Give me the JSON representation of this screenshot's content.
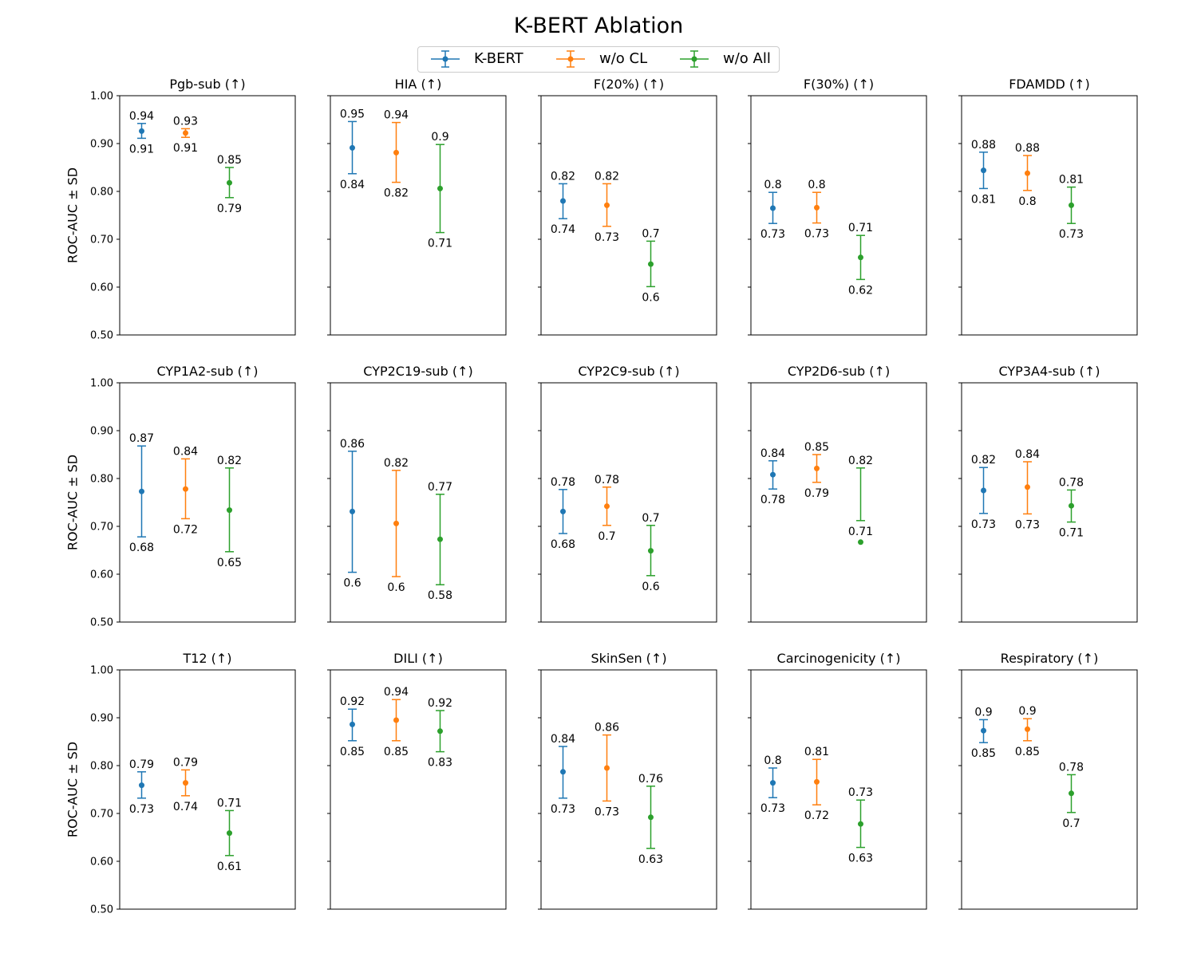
{
  "figure": {
    "title": "K-BERT Ablation"
  },
  "legend": [
    {
      "name": "K-BERT",
      "color": "#1f77b4"
    },
    {
      "name": "w/o CL",
      "color": "#ff7f0e"
    },
    {
      "name": "w/o All",
      "color": "#2ca02c"
    }
  ],
  "chart_data": [
    {
      "type": "scatter",
      "title": "Pgb-sub (↑)",
      "ylabel": "ROC-AUC ± SD",
      "ylim": [
        0.5,
        1.0
      ],
      "yticks": [
        "0.50",
        "0.60",
        "0.70",
        "0.80",
        "0.90",
        "1.00"
      ],
      "series": [
        {
          "name": "K-BERT",
          "mean": 0.926,
          "upper": 0.942,
          "lower": 0.911,
          "upper_label": "0.94",
          "lower_label": "0.91"
        },
        {
          "name": "w/o CL",
          "mean": 0.922,
          "upper": 0.931,
          "lower": 0.913,
          "upper_label": "0.93",
          "lower_label": "0.91"
        },
        {
          "name": "w/o All",
          "mean": 0.818,
          "upper": 0.85,
          "lower": 0.787,
          "upper_label": "0.85",
          "lower_label": "0.79"
        }
      ]
    },
    {
      "type": "scatter",
      "title": "HIA (↑)",
      "ylabel": "",
      "ylim": [
        0.5,
        1.0
      ],
      "yticks": [],
      "series": [
        {
          "name": "K-BERT",
          "mean": 0.891,
          "upper": 0.946,
          "lower": 0.837,
          "upper_label": "0.95",
          "lower_label": "0.84"
        },
        {
          "name": "w/o CL",
          "mean": 0.881,
          "upper": 0.944,
          "lower": 0.819,
          "upper_label": "0.94",
          "lower_label": "0.82"
        },
        {
          "name": "w/o All",
          "mean": 0.806,
          "upper": 0.898,
          "lower": 0.714,
          "upper_label": "0.9",
          "lower_label": "0.71"
        }
      ]
    },
    {
      "type": "scatter",
      "title": "F(20%) (↑)",
      "ylabel": "",
      "ylim": [
        0.5,
        1.0
      ],
      "yticks": [],
      "series": [
        {
          "name": "K-BERT",
          "mean": 0.78,
          "upper": 0.816,
          "lower": 0.743,
          "upper_label": "0.82",
          "lower_label": "0.74"
        },
        {
          "name": "w/o CL",
          "mean": 0.771,
          "upper": 0.816,
          "lower": 0.727,
          "upper_label": "0.82",
          "lower_label": "0.73"
        },
        {
          "name": "w/o All",
          "mean": 0.648,
          "upper": 0.696,
          "lower": 0.601,
          "upper_label": "0.7",
          "lower_label": "0.6"
        }
      ]
    },
    {
      "type": "scatter",
      "title": "F(30%) (↑)",
      "ylabel": "",
      "ylim": [
        0.5,
        1.0
      ],
      "yticks": [],
      "series": [
        {
          "name": "K-BERT",
          "mean": 0.765,
          "upper": 0.798,
          "lower": 0.733,
          "upper_label": "0.8",
          "lower_label": "0.73"
        },
        {
          "name": "w/o CL",
          "mean": 0.766,
          "upper": 0.798,
          "lower": 0.734,
          "upper_label": "0.8",
          "lower_label": "0.73"
        },
        {
          "name": "w/o All",
          "mean": 0.662,
          "upper": 0.708,
          "lower": 0.616,
          "upper_label": "0.71",
          "lower_label": "0.62"
        }
      ]
    },
    {
      "type": "scatter",
      "title": "FDAMDD (↑)",
      "ylabel": "",
      "ylim": [
        0.5,
        1.0
      ],
      "yticks": [],
      "series": [
        {
          "name": "K-BERT",
          "mean": 0.844,
          "upper": 0.882,
          "lower": 0.806,
          "upper_label": "0.88",
          "lower_label": "0.81"
        },
        {
          "name": "w/o CL",
          "mean": 0.838,
          "upper": 0.875,
          "lower": 0.802,
          "upper_label": "0.88",
          "lower_label": "0.8"
        },
        {
          "name": "w/o All",
          "mean": 0.771,
          "upper": 0.809,
          "lower": 0.733,
          "upper_label": "0.81",
          "lower_label": "0.73"
        }
      ]
    },
    {
      "type": "scatter",
      "title": "CYP1A2-sub (↑)",
      "ylabel": "ROC-AUC ± SD",
      "ylim": [
        0.5,
        1.0
      ],
      "yticks": [
        "0.50",
        "0.60",
        "0.70",
        "0.80",
        "0.90",
        "1.00"
      ],
      "series": [
        {
          "name": "K-BERT",
          "mean": 0.773,
          "upper": 0.868,
          "lower": 0.678,
          "upper_label": "0.87",
          "lower_label": "0.68"
        },
        {
          "name": "w/o CL",
          "mean": 0.778,
          "upper": 0.841,
          "lower": 0.716,
          "upper_label": "0.84",
          "lower_label": "0.72"
        },
        {
          "name": "w/o All",
          "mean": 0.734,
          "upper": 0.822,
          "lower": 0.647,
          "upper_label": "0.82",
          "lower_label": "0.65"
        }
      ]
    },
    {
      "type": "scatter",
      "title": "CYP2C19-sub (↑)",
      "ylabel": "",
      "ylim": [
        0.5,
        1.0
      ],
      "yticks": [],
      "series": [
        {
          "name": "K-BERT",
          "mean": 0.731,
          "upper": 0.857,
          "lower": 0.604,
          "upper_label": "0.86",
          "lower_label": "0.6"
        },
        {
          "name": "w/o CL",
          "mean": 0.706,
          "upper": 0.817,
          "lower": 0.595,
          "upper_label": "0.82",
          "lower_label": "0.6"
        },
        {
          "name": "w/o All",
          "mean": 0.673,
          "upper": 0.767,
          "lower": 0.578,
          "upper_label": "0.77",
          "lower_label": "0.58"
        }
      ]
    },
    {
      "type": "scatter",
      "title": "CYP2C9-sub (↑)",
      "ylabel": "",
      "ylim": [
        0.5,
        1.0
      ],
      "yticks": [],
      "series": [
        {
          "name": "K-BERT",
          "mean": 0.731,
          "upper": 0.777,
          "lower": 0.685,
          "upper_label": "0.78",
          "lower_label": "0.68"
        },
        {
          "name": "w/o CL",
          "mean": 0.742,
          "upper": 0.782,
          "lower": 0.702,
          "upper_label": "0.78",
          "lower_label": "0.7"
        },
        {
          "name": "w/o All",
          "mean": 0.649,
          "upper": 0.702,
          "lower": 0.597,
          "upper_label": "0.7",
          "lower_label": "0.6"
        }
      ]
    },
    {
      "type": "scatter",
      "title": "CYP2D6-sub (↑)",
      "ylabel": "",
      "ylim": [
        0.5,
        1.0
      ],
      "yticks": [],
      "series": [
        {
          "name": "K-BERT",
          "mean": 0.808,
          "upper": 0.837,
          "lower": 0.778,
          "upper_label": "0.84",
          "lower_label": "0.78"
        },
        {
          "name": "w/o CL",
          "mean": 0.821,
          "upper": 0.85,
          "lower": 0.792,
          "upper_label": "0.85",
          "lower_label": "0.79"
        },
        {
          "name": "w/o All",
          "mean": 0.667,
          "upper": 0.822,
          "lower": 0.712,
          "upper_label": "0.82",
          "lower_label": "0.71"
        }
      ]
    },
    {
      "type": "scatter",
      "title": "CYP3A4-sub (↑)",
      "ylabel": "",
      "ylim": [
        0.5,
        1.0
      ],
      "yticks": [],
      "series": [
        {
          "name": "K-BERT",
          "mean": 0.775,
          "upper": 0.823,
          "lower": 0.727,
          "upper_label": "0.82",
          "lower_label": "0.73"
        },
        {
          "name": "w/o CL",
          "mean": 0.782,
          "upper": 0.835,
          "lower": 0.726,
          "upper_label": "0.84",
          "lower_label": "0.73"
        },
        {
          "name": "w/o All",
          "mean": 0.743,
          "upper": 0.776,
          "lower": 0.709,
          "upper_label": "0.78",
          "lower_label": "0.71"
        }
      ]
    },
    {
      "type": "scatter",
      "title": "T12 (↑)",
      "ylabel": "ROC-AUC ± SD",
      "ylim": [
        0.5,
        1.0
      ],
      "yticks": [
        "0.50",
        "0.60",
        "0.70",
        "0.80",
        "0.90",
        "1.00"
      ],
      "series": [
        {
          "name": "K-BERT",
          "mean": 0.759,
          "upper": 0.787,
          "lower": 0.732,
          "upper_label": "0.79",
          "lower_label": "0.73"
        },
        {
          "name": "w/o CL",
          "mean": 0.764,
          "upper": 0.791,
          "lower": 0.737,
          "upper_label": "0.79",
          "lower_label": "0.74"
        },
        {
          "name": "w/o All",
          "mean": 0.659,
          "upper": 0.706,
          "lower": 0.612,
          "upper_label": "0.71",
          "lower_label": "0.61"
        }
      ]
    },
    {
      "type": "scatter",
      "title": "DILI (↑)",
      "ylabel": "",
      "ylim": [
        0.5,
        1.0
      ],
      "yticks": [],
      "series": [
        {
          "name": "K-BERT",
          "mean": 0.886,
          "upper": 0.918,
          "lower": 0.852,
          "upper_label": "0.92",
          "lower_label": "0.85"
        },
        {
          "name": "w/o CL",
          "mean": 0.895,
          "upper": 0.938,
          "lower": 0.852,
          "upper_label": "0.94",
          "lower_label": "0.85"
        },
        {
          "name": "w/o All",
          "mean": 0.872,
          "upper": 0.915,
          "lower": 0.829,
          "upper_label": "0.92",
          "lower_label": "0.83"
        }
      ]
    },
    {
      "type": "scatter",
      "title": "SkinSen (↑)",
      "ylabel": "",
      "ylim": [
        0.5,
        1.0
      ],
      "yticks": [],
      "series": [
        {
          "name": "K-BERT",
          "mean": 0.787,
          "upper": 0.84,
          "lower": 0.732,
          "upper_label": "0.84",
          "lower_label": "0.73"
        },
        {
          "name": "w/o CL",
          "mean": 0.795,
          "upper": 0.864,
          "lower": 0.726,
          "upper_label": "0.86",
          "lower_label": "0.73"
        },
        {
          "name": "w/o All",
          "mean": 0.692,
          "upper": 0.757,
          "lower": 0.627,
          "upper_label": "0.76",
          "lower_label": "0.63"
        }
      ]
    },
    {
      "type": "scatter",
      "title": "Carcinogenicity (↑)",
      "ylabel": "",
      "ylim": [
        0.5,
        1.0
      ],
      "yticks": [],
      "series": [
        {
          "name": "K-BERT",
          "mean": 0.764,
          "upper": 0.795,
          "lower": 0.733,
          "upper_label": "0.8",
          "lower_label": "0.73"
        },
        {
          "name": "w/o CL",
          "mean": 0.766,
          "upper": 0.813,
          "lower": 0.718,
          "upper_label": "0.81",
          "lower_label": "0.72"
        },
        {
          "name": "w/o All",
          "mean": 0.678,
          "upper": 0.728,
          "lower": 0.629,
          "upper_label": "0.73",
          "lower_label": "0.63"
        }
      ]
    },
    {
      "type": "scatter",
      "title": "Respiratory (↑)",
      "ylabel": "",
      "ylim": [
        0.5,
        1.0
      ],
      "yticks": [],
      "series": [
        {
          "name": "K-BERT",
          "mean": 0.873,
          "upper": 0.896,
          "lower": 0.848,
          "upper_label": "0.9",
          "lower_label": "0.85"
        },
        {
          "name": "w/o CL",
          "mean": 0.876,
          "upper": 0.898,
          "lower": 0.852,
          "upper_label": "0.9",
          "lower_label": "0.85"
        },
        {
          "name": "w/o All",
          "mean": 0.742,
          "upper": 0.781,
          "lower": 0.702,
          "upper_label": "0.78",
          "lower_label": "0.7"
        }
      ]
    }
  ]
}
